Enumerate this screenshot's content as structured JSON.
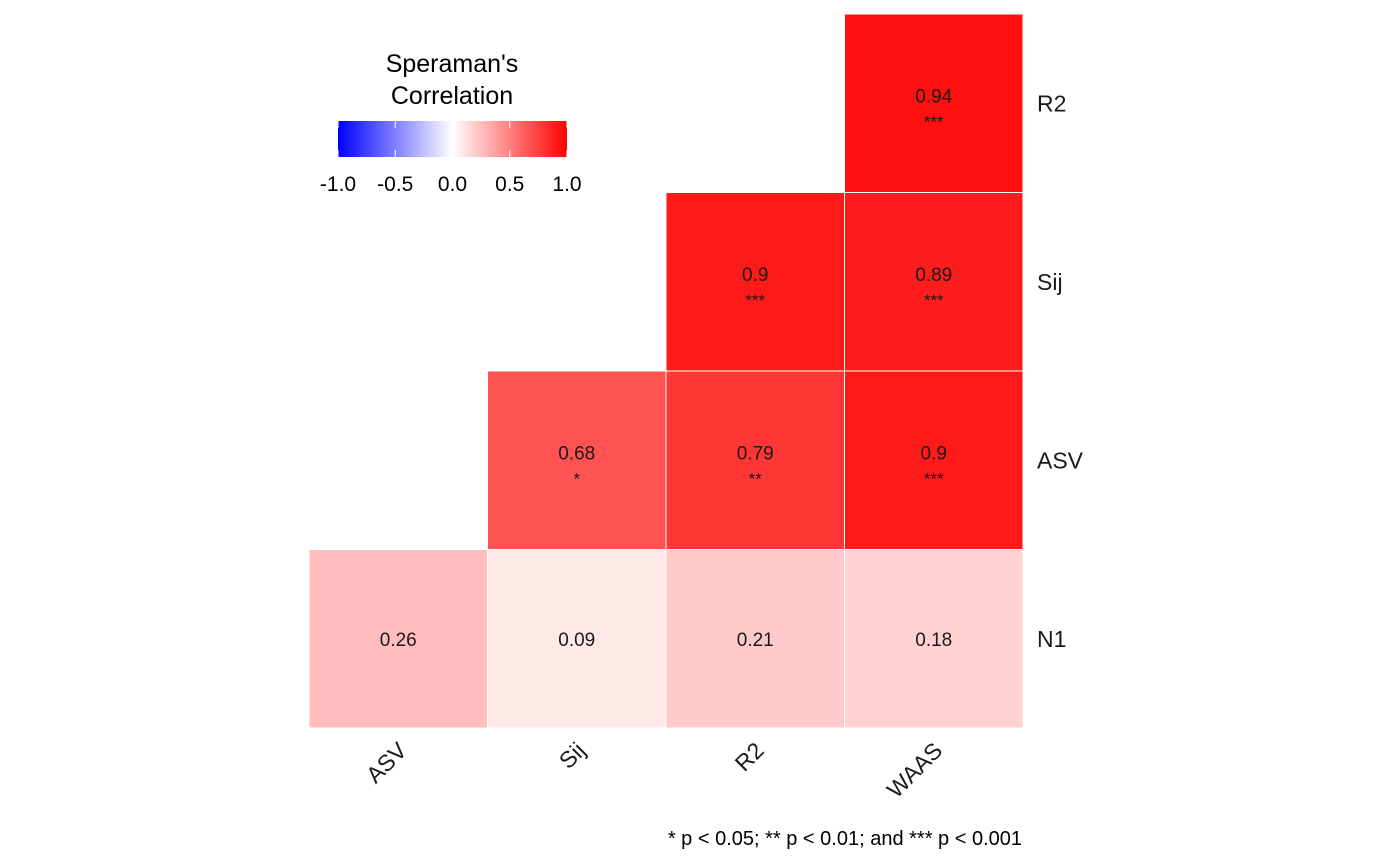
{
  "chart_data": {
    "type": "heatmap",
    "variables_x": [
      "ASV",
      "Sij",
      "R2",
      "WAAS"
    ],
    "variables_y": [
      "R2",
      "Sij",
      "ASV",
      "N1"
    ],
    "cells": [
      {
        "row": "R2",
        "col": "WAAS",
        "value": 0.94,
        "label": "0.94",
        "stars": "***"
      },
      {
        "row": "Sij",
        "col": "R2",
        "value": 0.9,
        "label": "0.9",
        "stars": "***"
      },
      {
        "row": "Sij",
        "col": "WAAS",
        "value": 0.89,
        "label": "0.89",
        "stars": "***"
      },
      {
        "row": "ASV",
        "col": "Sij",
        "value": 0.68,
        "label": "0.68",
        "stars": "*"
      },
      {
        "row": "ASV",
        "col": "R2",
        "value": 0.79,
        "label": "0.79",
        "stars": "**"
      },
      {
        "row": "ASV",
        "col": "WAAS",
        "value": 0.9,
        "label": "0.9",
        "stars": "***"
      },
      {
        "row": "N1",
        "col": "ASV",
        "value": 0.26,
        "label": "0.26",
        "stars": ""
      },
      {
        "row": "N1",
        "col": "Sij",
        "value": 0.09,
        "label": "0.09",
        "stars": ""
      },
      {
        "row": "N1",
        "col": "R2",
        "value": 0.21,
        "label": "0.21",
        "stars": ""
      },
      {
        "row": "N1",
        "col": "WAAS",
        "value": 0.18,
        "label": "0.18",
        "stars": ""
      }
    ],
    "color_scale": {
      "low": "#0000ff",
      "mid": "#ffffff",
      "high": "#ff0000",
      "limits": [
        -1,
        1
      ]
    },
    "legend": {
      "title_lines": [
        "Speraman's",
        "Correlation"
      ],
      "ticks": [
        "-1.0",
        "-0.5",
        "0.0",
        "0.5",
        "1.0"
      ],
      "position": "top-left"
    },
    "caption": "* p < 0.05; ** p < 0.01; and *** p < 0.001",
    "grid": false
  }
}
